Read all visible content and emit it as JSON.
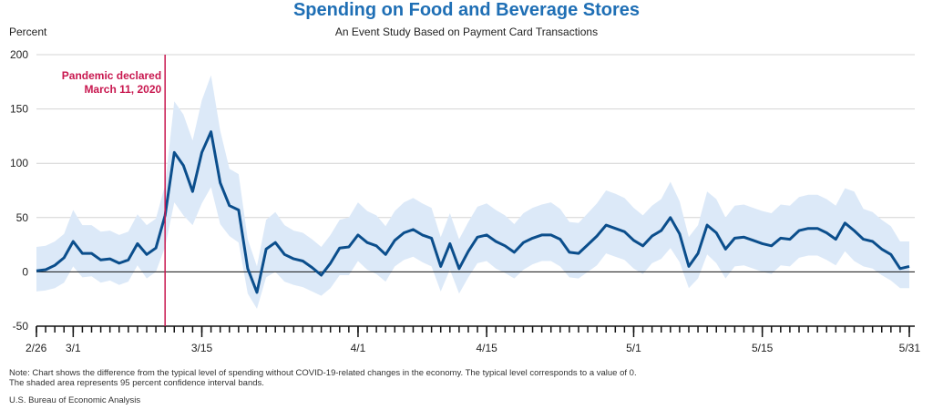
{
  "chart_data": {
    "type": "line",
    "title": "Spending on Food and Beverage Stores",
    "subtitle": "An Event Study Based on Payment Card Transactions",
    "ylabel": "Percent",
    "ylim": [
      -50,
      200
    ],
    "yticks": [
      -50,
      0,
      50,
      100,
      150,
      200
    ],
    "xticks": [
      {
        "label": "2/26",
        "day": 0
      },
      {
        "label": "3/1",
        "day": 4
      },
      {
        "label": "3/15",
        "day": 18
      },
      {
        "label": "4/1",
        "day": 35
      },
      {
        "label": "4/15",
        "day": 49
      },
      {
        "label": "5/1",
        "day": 65
      },
      {
        "label": "5/15",
        "day": 79
      },
      {
        "label": "5/31",
        "day": 95
      }
    ],
    "grid": true,
    "series": [
      {
        "role": "estimate",
        "color": "#0b4e8c",
        "values": [
          1,
          2,
          6,
          13,
          28,
          17,
          17,
          11,
          12,
          8,
          11,
          26,
          16,
          22,
          52,
          110,
          98,
          74,
          110,
          129,
          82,
          61,
          57,
          3,
          -19,
          21,
          27,
          16,
          12,
          10,
          4,
          -3,
          8,
          22,
          23,
          34,
          27,
          24,
          16,
          29,
          36,
          39,
          34,
          31,
          5,
          26,
          3,
          19,
          32,
          34,
          28,
          24,
          18,
          27,
          31,
          34,
          34,
          30,
          18,
          17,
          25,
          33,
          43,
          40,
          37,
          29,
          24,
          33,
          38,
          50,
          35,
          5,
          17,
          43,
          36,
          21,
          31,
          32,
          29,
          26,
          24,
          31,
          30,
          38,
          40,
          40,
          36,
          30,
          45,
          38,
          30,
          28,
          21,
          16,
          3,
          5
        ]
      },
      {
        "role": "upper-95",
        "color": "#dce9f8",
        "values": [
          23,
          24,
          28,
          35,
          57,
          43,
          43,
          37,
          38,
          34,
          37,
          53,
          43,
          49,
          80,
          157,
          145,
          121,
          158,
          181,
          130,
          95,
          90,
          30,
          5,
          48,
          55,
          43,
          38,
          36,
          30,
          23,
          34,
          48,
          50,
          64,
          56,
          52,
          42,
          56,
          64,
          68,
          63,
          59,
          32,
          54,
          30,
          46,
          60,
          63,
          57,
          52,
          44,
          54,
          59,
          62,
          64,
          58,
          46,
          45,
          54,
          63,
          75,
          72,
          68,
          59,
          52,
          61,
          67,
          83,
          65,
          32,
          43,
          74,
          67,
          50,
          61,
          62,
          59,
          56,
          54,
          62,
          61,
          69,
          71,
          71,
          67,
          61,
          77,
          74,
          58,
          55,
          48,
          42,
          28,
          28
        ]
      },
      {
        "role": "lower-95",
        "color": "#dce9f8",
        "values": [
          -18,
          -17,
          -15,
          -10,
          5,
          -5,
          -4,
          -10,
          -8,
          -12,
          -9,
          6,
          -6,
          0,
          23,
          64,
          52,
          43,
          63,
          78,
          44,
          33,
          27,
          -20,
          -34,
          -5,
          0,
          -9,
          -12,
          -14,
          -18,
          -22,
          -15,
          -3,
          -3,
          10,
          2,
          -2,
          -9,
          5,
          11,
          14,
          9,
          5,
          -18,
          2,
          -20,
          -5,
          8,
          10,
          3,
          -1,
          -6,
          2,
          7,
          10,
          10,
          5,
          -5,
          -6,
          0,
          6,
          17,
          14,
          11,
          3,
          -2,
          8,
          12,
          22,
          9,
          -15,
          -6,
          16,
          8,
          -6,
          5,
          6,
          3,
          0,
          -2,
          6,
          5,
          13,
          15,
          15,
          11,
          6,
          19,
          10,
          5,
          3,
          -3,
          -8,
          -15,
          -15
        ]
      }
    ],
    "annotations": [
      {
        "label_line1": "Pandemic declared",
        "label_line2": "March 11, 2020",
        "day": 14,
        "color": "#c8174f"
      }
    ]
  },
  "note_line1": "Note: Chart shows the difference from the typical level of spending without COVID-19-related changes in the economy. The typical level corresponds to a value of 0.",
  "note_line2": "The shaded area represents 95 percent confidence interval bands.",
  "source": "U.S. Bureau of Economic Analysis"
}
